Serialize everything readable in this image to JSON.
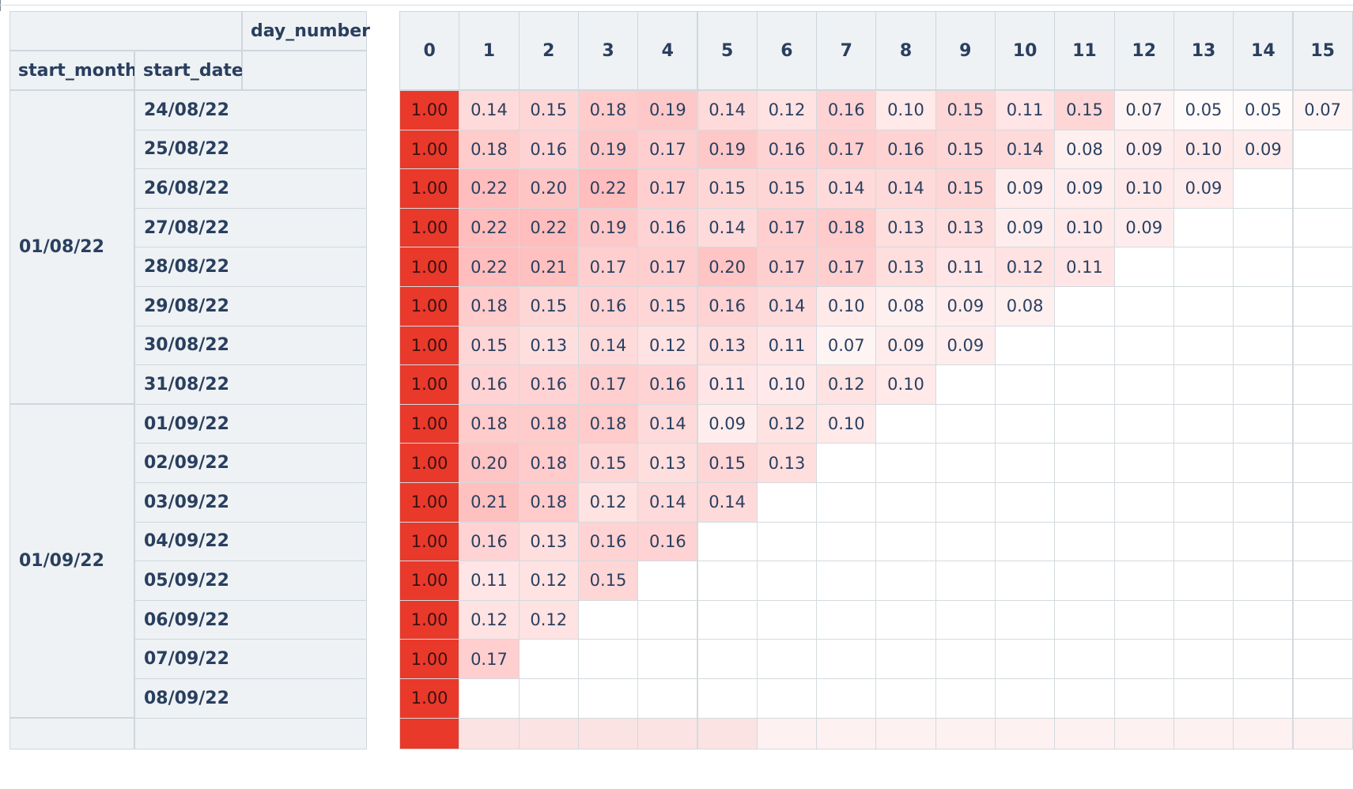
{
  "table": {
    "corner_header": "day_number",
    "index_headers": [
      "start_month",
      "start_date"
    ],
    "day_columns": [
      "0",
      "1",
      "2",
      "3",
      "4",
      "5",
      "6",
      "7",
      "8",
      "9",
      "10",
      "11",
      "12",
      "13",
      "14",
      "15"
    ],
    "groups": [
      {
        "month": "01/08/22",
        "rows": [
          {
            "date": "24/08/22",
            "values": [
              "1.00",
              "0.14",
              "0.15",
              "0.18",
              "0.19",
              "0.14",
              "0.12",
              "0.16",
              "0.10",
              "0.15",
              "0.11",
              "0.15",
              "0.07",
              "0.05",
              "0.05",
              "0.07"
            ]
          },
          {
            "date": "25/08/22",
            "values": [
              "1.00",
              "0.18",
              "0.16",
              "0.19",
              "0.17",
              "0.19",
              "0.16",
              "0.17",
              "0.16",
              "0.15",
              "0.14",
              "0.08",
              "0.09",
              "0.10",
              "0.09"
            ]
          },
          {
            "date": "26/08/22",
            "values": [
              "1.00",
              "0.22",
              "0.20",
              "0.22",
              "0.17",
              "0.15",
              "0.15",
              "0.14",
              "0.14",
              "0.15",
              "0.09",
              "0.09",
              "0.10",
              "0.09"
            ]
          },
          {
            "date": "27/08/22",
            "values": [
              "1.00",
              "0.22",
              "0.22",
              "0.19",
              "0.16",
              "0.14",
              "0.17",
              "0.18",
              "0.13",
              "0.13",
              "0.09",
              "0.10",
              "0.09"
            ]
          },
          {
            "date": "28/08/22",
            "values": [
              "1.00",
              "0.22",
              "0.21",
              "0.17",
              "0.17",
              "0.20",
              "0.17",
              "0.17",
              "0.13",
              "0.11",
              "0.12",
              "0.11"
            ]
          },
          {
            "date": "29/08/22",
            "values": [
              "1.00",
              "0.18",
              "0.15",
              "0.16",
              "0.15",
              "0.16",
              "0.14",
              "0.10",
              "0.08",
              "0.09",
              "0.08"
            ]
          },
          {
            "date": "30/08/22",
            "values": [
              "1.00",
              "0.15",
              "0.13",
              "0.14",
              "0.12",
              "0.13",
              "0.11",
              "0.07",
              "0.09",
              "0.09"
            ]
          },
          {
            "date": "31/08/22",
            "values": [
              "1.00",
              "0.16",
              "0.16",
              "0.17",
              "0.16",
              "0.11",
              "0.10",
              "0.12",
              "0.10"
            ]
          }
        ]
      },
      {
        "month": "01/09/22",
        "rows": [
          {
            "date": "01/09/22",
            "values": [
              "1.00",
              "0.18",
              "0.18",
              "0.18",
              "0.14",
              "0.09",
              "0.12",
              "0.10"
            ]
          },
          {
            "date": "02/09/22",
            "values": [
              "1.00",
              "0.20",
              "0.18",
              "0.15",
              "0.13",
              "0.15",
              "0.13"
            ]
          },
          {
            "date": "03/09/22",
            "values": [
              "1.00",
              "0.21",
              "0.18",
              "0.12",
              "0.14",
              "0.14"
            ]
          },
          {
            "date": "04/09/22",
            "values": [
              "1.00",
              "0.16",
              "0.13",
              "0.16",
              "0.16"
            ]
          },
          {
            "date": "05/09/22",
            "values": [
              "1.00",
              "0.11",
              "0.12",
              "0.15"
            ]
          },
          {
            "date": "06/09/22",
            "values": [
              "1.00",
              "0.12",
              "0.12"
            ]
          },
          {
            "date": "07/09/22",
            "values": [
              "1.00",
              "0.17"
            ]
          },
          {
            "date": "08/09/22",
            "values": [
              "1.00"
            ]
          }
        ]
      }
    ],
    "colors": {
      "baseline_red": "#e8392b",
      "heat_max": "#f0a3a3",
      "header_bg": "#eef2f4",
      "text": "#2a3f5f"
    }
  }
}
